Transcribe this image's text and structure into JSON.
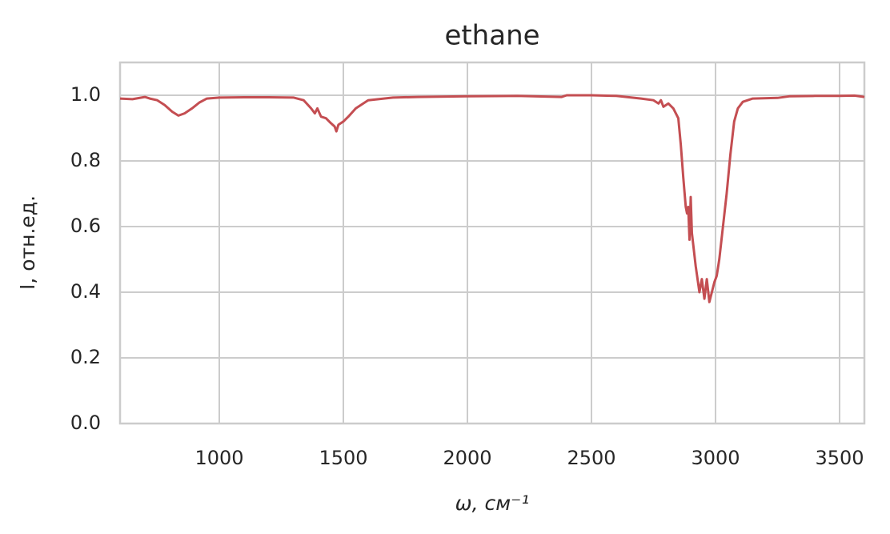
{
  "chart_data": {
    "type": "line",
    "title": "ethane",
    "x_label": "ω, см⁻¹",
    "y_label": "I, отн.ед.",
    "x": [
      600,
      650,
      700,
      720,
      750,
      780,
      810,
      835,
      860,
      890,
      920,
      950,
      1000,
      1100,
      1200,
      1300,
      1340,
      1370,
      1385,
      1395,
      1410,
      1430,
      1450,
      1465,
      1472,
      1480,
      1500,
      1520,
      1550,
      1600,
      1700,
      1800,
      2000,
      2200,
      2380,
      2400,
      2500,
      2600,
      2700,
      2750,
      2770,
      2780,
      2790,
      2810,
      2830,
      2850,
      2860,
      2870,
      2880,
      2885,
      2890,
      2895,
      2900,
      2905,
      2920,
      2935,
      2945,
      2955,
      2965,
      2975,
      2985,
      2995,
      3005,
      3015,
      3030,
      3045,
      3060,
      3075,
      3090,
      3110,
      3150,
      3250,
      3300,
      3400,
      3500,
      3560,
      3600
    ],
    "series": [
      {
        "color": "#c44e52",
        "values": [
          0.99,
          0.988,
          0.995,
          0.99,
          0.985,
          0.97,
          0.95,
          0.938,
          0.945,
          0.96,
          0.978,
          0.99,
          0.993,
          0.994,
          0.994,
          0.993,
          0.985,
          0.96,
          0.945,
          0.96,
          0.935,
          0.93,
          0.915,
          0.905,
          0.89,
          0.91,
          0.92,
          0.935,
          0.96,
          0.985,
          0.993,
          0.995,
          0.997,
          0.998,
          0.995,
          1.0,
          1.0,
          0.998,
          0.99,
          0.985,
          0.975,
          0.985,
          0.965,
          0.975,
          0.96,
          0.93,
          0.85,
          0.75,
          0.66,
          0.64,
          0.66,
          0.56,
          0.69,
          0.58,
          0.48,
          0.4,
          0.44,
          0.38,
          0.44,
          0.37,
          0.4,
          0.43,
          0.45,
          0.5,
          0.6,
          0.7,
          0.82,
          0.92,
          0.96,
          0.98,
          0.99,
          0.992,
          0.997,
          0.998,
          0.998,
          0.999,
          0.995
        ]
      }
    ],
    "xlim": [
      600,
      3600
    ],
    "xticks": [
      1000,
      1500,
      2000,
      2500,
      3000,
      3500
    ],
    "ylim": [
      0,
      1.1
    ],
    "yticks": [
      {
        "value": 0,
        "label": "0.0"
      },
      0.2,
      0.4,
      0.6,
      0.8,
      {
        "value": 1,
        "label": "1.0"
      }
    ],
    "grid": true
  }
}
